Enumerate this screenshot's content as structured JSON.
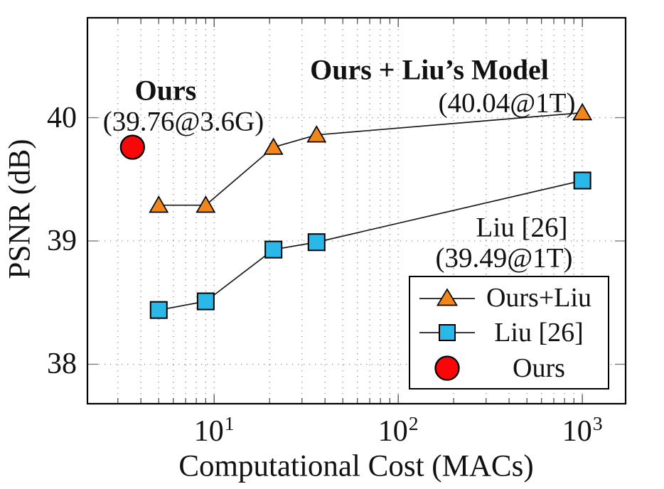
{
  "chart_data": {
    "type": "line",
    "title": "",
    "xlabel": "Computational Cost (MACs)",
    "ylabel": "PSNR (dB)",
    "x_scale": "log10",
    "xlim": [
      2.05,
      1718
    ],
    "ylim": [
      37.68,
      40.81
    ],
    "x_major_ticks": [
      10,
      100,
      1000
    ],
    "x_tick_labels": [
      {
        "base": "10",
        "exp": "1"
      },
      {
        "base": "10",
        "exp": "2"
      },
      {
        "base": "10",
        "exp": "3"
      }
    ],
    "x_minor_ticks": [
      3,
      4,
      5,
      6,
      7,
      8,
      9,
      20,
      30,
      40,
      50,
      60,
      70,
      80,
      90,
      200,
      300,
      400,
      500,
      600,
      700,
      800,
      900
    ],
    "y_major_ticks": [
      38,
      39,
      40
    ],
    "y_tick_labels": [
      "38",
      "39",
      "40"
    ],
    "grid": {
      "style": "dotted",
      "color": "#8f8f8f",
      "vertical": "major+minor",
      "horizontal": "major-only"
    },
    "series": [
      {
        "name": "Ours+Liu",
        "marker": "triangle",
        "color": "#F2861B",
        "line": true,
        "points": [
          [
            5,
            39.29
          ],
          [
            9,
            39.29
          ],
          [
            21,
            39.76
          ],
          [
            36,
            39.86
          ],
          [
            1000,
            40.04
          ]
        ]
      },
      {
        "name": "Liu [26]",
        "marker": "square",
        "color": "#29B8E8",
        "line": true,
        "points": [
          [
            5,
            38.44
          ],
          [
            9,
            38.51
          ],
          [
            21,
            38.93
          ],
          [
            36,
            38.99
          ],
          [
            1000,
            39.49
          ]
        ]
      },
      {
        "name": "Ours",
        "marker": "circle",
        "color": "#FA0508",
        "line": false,
        "points": [
          [
            3.6,
            39.76
          ]
        ]
      }
    ],
    "legend": {
      "position": "inside bottom-right",
      "entries": [
        "Ours+Liu",
        "Liu [26]",
        "Ours"
      ]
    }
  },
  "annotations": {
    "ours": {
      "label": "Ours",
      "value": "(39.76@3.6G)"
    },
    "ours_liu": {
      "label": "Ours + Liu’s Model",
      "value": "(40.04@1T)"
    },
    "liu": {
      "label": "Liu [26]",
      "value": "(39.49@1T)"
    }
  }
}
